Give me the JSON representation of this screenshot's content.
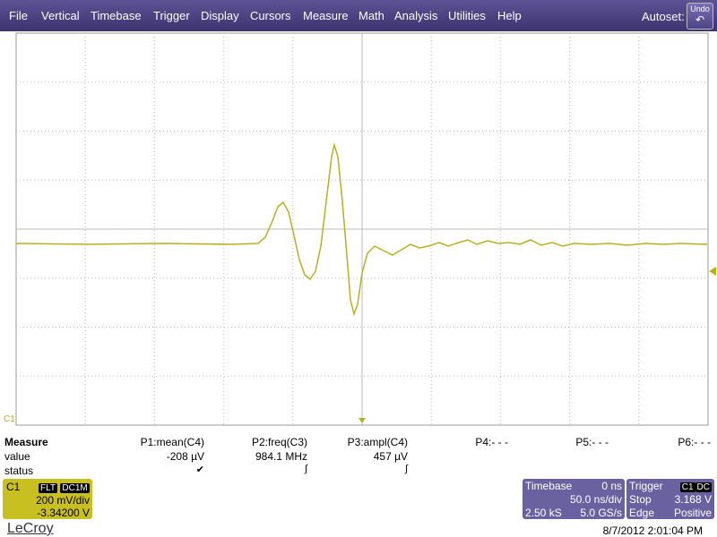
{
  "menu": {
    "items": [
      "File",
      "Vertical",
      "Timebase",
      "Trigger",
      "Display",
      "Cursors",
      "Measure",
      "Math",
      "Analysis",
      "Utilities",
      "Help"
    ],
    "autoset": "Autoset:",
    "undo": "Undo"
  },
  "grid_marker": "C1",
  "measure": {
    "title": "Measure",
    "row_labels": [
      "value",
      "status"
    ],
    "params": [
      {
        "name": "P1:mean(C4)",
        "value": "-208 µV"
      },
      {
        "name": "P2:freq(C3)",
        "value": "984.1 MHz"
      },
      {
        "name": "P3:ampl(C4)",
        "value": "457 µV"
      },
      {
        "name": "P4:- - -"
      },
      {
        "name": "P5:- - -"
      },
      {
        "name": "P6:- - -"
      }
    ]
  },
  "channel": {
    "name": "C1",
    "tags": [
      "FLT",
      "DC1M"
    ],
    "scale": "200 mV/div",
    "offset": "-3.34200 V"
  },
  "timebase": {
    "title": "Timebase",
    "delay": "0 ns",
    "scale": "50.0 ns/div",
    "samples": "2.50 kS",
    "rate": "5.0 GS/s"
  },
  "trigger": {
    "title": "Trigger",
    "tags": [
      "C1",
      "DC"
    ],
    "mode": "Stop",
    "level": "3.168 V",
    "type": "Edge",
    "slope": "Positive"
  },
  "footer": {
    "logo": "LeCroy",
    "timestamp": "8/7/2012 2:01:04 PM"
  }
}
